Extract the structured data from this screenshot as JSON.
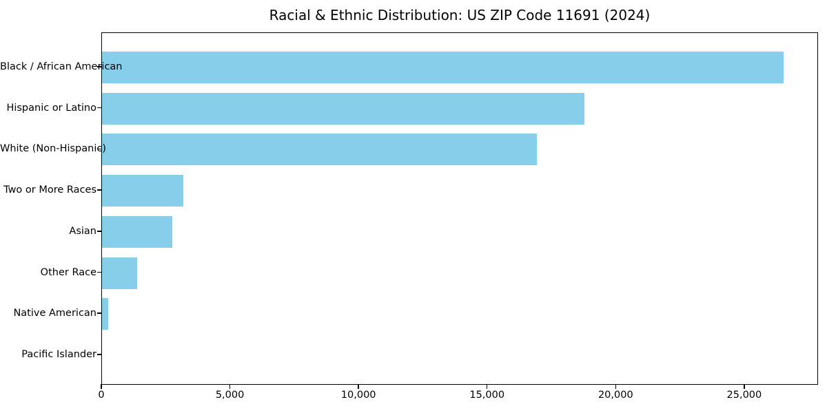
{
  "chart_data": {
    "type": "bar",
    "orientation": "horizontal",
    "title": "Racial & Ethnic Distribution: US ZIP Code 11691 (2024)",
    "categories": [
      "Black / African American",
      "Hispanic or Latino",
      "White (Non-Hispanic)",
      "Two or More Races",
      "Asian",
      "Other Race",
      "Native American",
      "Pacific Islander"
    ],
    "values": [
      26500,
      18750,
      16900,
      3160,
      2730,
      1370,
      240,
      0
    ],
    "xlabel": "",
    "ylabel": "",
    "xlim": [
      0,
      27870
    ],
    "x_ticks": [
      0,
      5000,
      10000,
      15000,
      20000,
      25000
    ],
    "bar_color": "#87CEEB",
    "text_color": "#000000",
    "grid": false,
    "legend": null
  }
}
